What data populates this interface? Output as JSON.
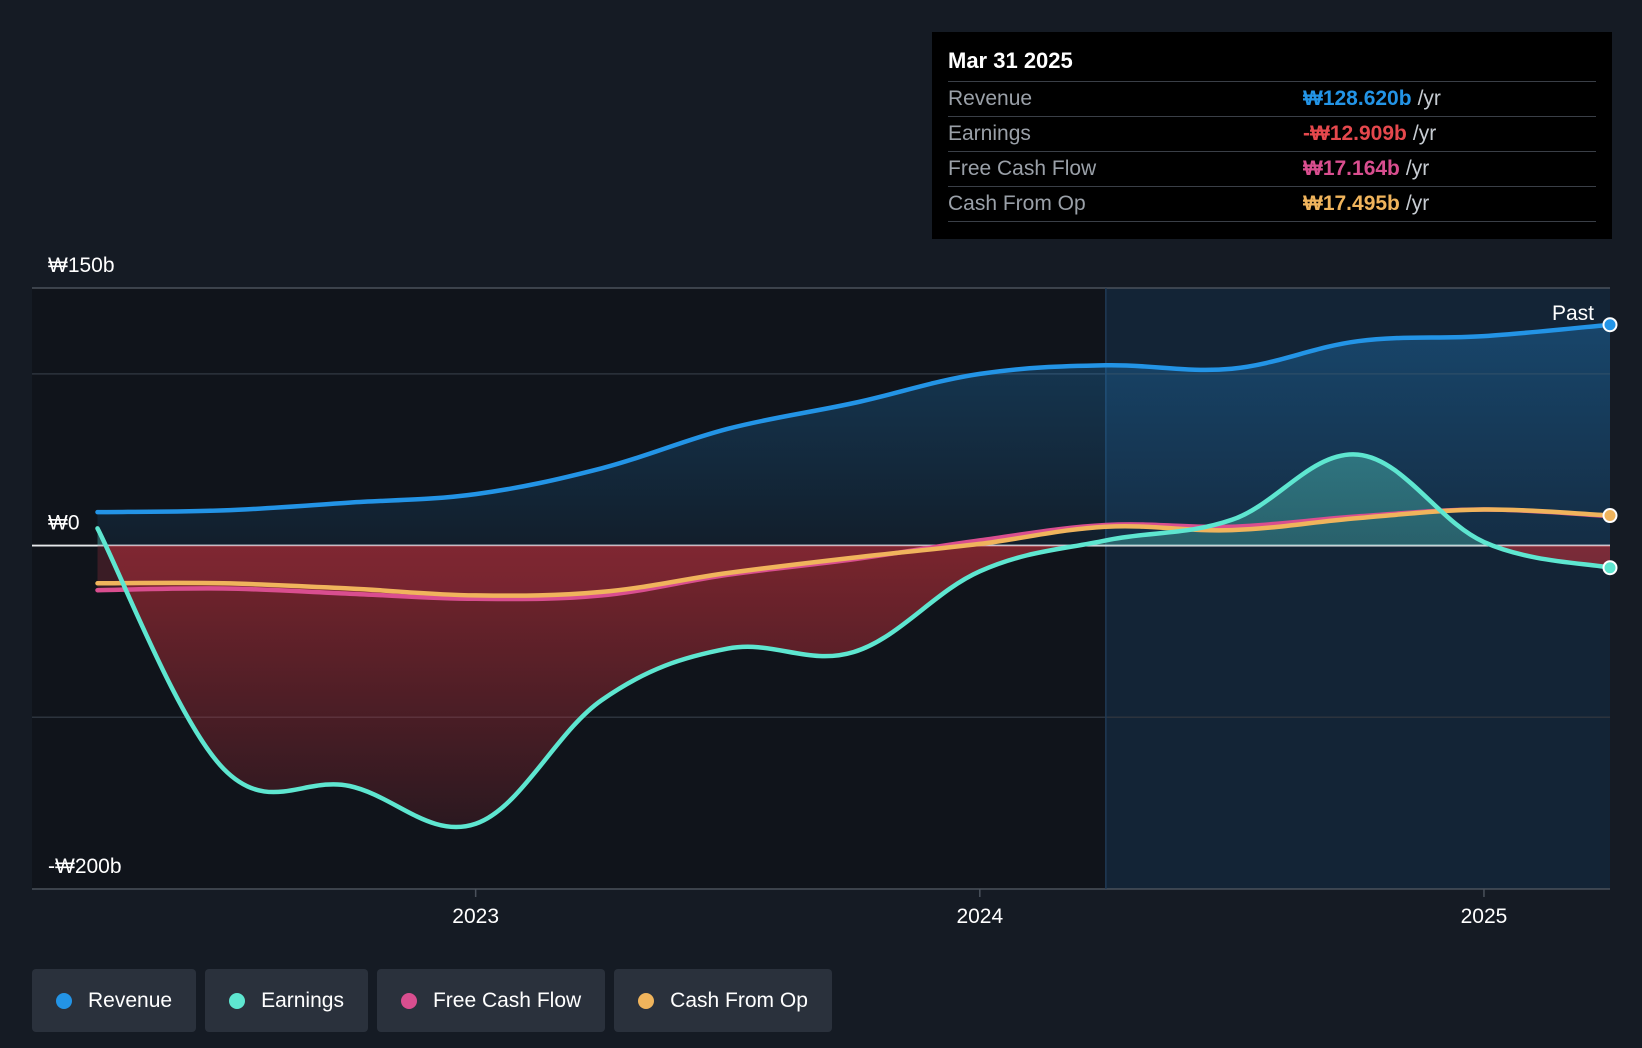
{
  "tooltip": {
    "date": "Mar 31 2025",
    "rows": [
      {
        "label": "Revenue",
        "value": "₩128.620b",
        "unit": "/yr",
        "color": "#2394e6"
      },
      {
        "label": "Earnings",
        "value": "-₩12.909b",
        "unit": "/yr",
        "color": "#e5484d"
      },
      {
        "label": "Free Cash Flow",
        "value": "₩17.164b",
        "unit": "/yr",
        "color": "#d94e8f"
      },
      {
        "label": "Cash From Op",
        "value": "₩17.495b",
        "unit": "/yr",
        "color": "#f0b45c"
      }
    ]
  },
  "legend": [
    {
      "label": "Revenue",
      "color": "#2394e6"
    },
    {
      "label": "Earnings",
      "color": "#5ee6d0"
    },
    {
      "label": "Free Cash Flow",
      "color": "#d94e8f"
    },
    {
      "label": "Cash From Op",
      "color": "#f0b45c"
    }
  ],
  "chart_data": {
    "type": "line",
    "title": "",
    "xlabel": "",
    "ylabel": "",
    "ylim": [
      -200,
      150
    ],
    "xlim": [
      2022.12,
      2025.25
    ],
    "y_tick_labels": {
      "top": "₩150b",
      "zero": "₩0",
      "bottom": "-₩200b"
    },
    "x_ticks": [
      {
        "value": 2023.0,
        "label": "2023"
      },
      {
        "value": 2024.0,
        "label": "2024"
      },
      {
        "value": 2025.0,
        "label": "2025"
      }
    ],
    "past_label": "Past",
    "past_start": 2024.25,
    "series": [
      {
        "name": "Revenue",
        "color": "#2394e6",
        "x": [
          2022.25,
          2022.5,
          2022.75,
          2023.0,
          2023.25,
          2023.5,
          2023.75,
          2024.0,
          2024.25,
          2024.5,
          2024.75,
          2025.0,
          2025.25
        ],
        "values": [
          19.5,
          20.5,
          25,
          30,
          45,
          68,
          83,
          100,
          105,
          103,
          119,
          122,
          128.62
        ]
      },
      {
        "name": "Earnings",
        "color": "#5ee6d0",
        "x": [
          2022.25,
          2022.5,
          2022.75,
          2023.0,
          2023.25,
          2023.5,
          2023.75,
          2024.0,
          2024.25,
          2024.5,
          2024.75,
          2025.0,
          2025.25
        ],
        "values": [
          10,
          -130,
          -140,
          -162,
          -90,
          -60,
          -62,
          -15,
          3,
          15,
          53,
          2,
          -12.909
        ]
      },
      {
        "name": "Free Cash Flow",
        "color": "#d94e8f",
        "x": [
          2022.25,
          2022.5,
          2022.75,
          2023.0,
          2023.25,
          2023.5,
          2023.75,
          2024.0,
          2024.25,
          2024.5,
          2024.75,
          2025.0,
          2025.25
        ],
        "values": [
          -26,
          -25,
          -28,
          -31,
          -29,
          -17,
          -8,
          3,
          12,
          11,
          17,
          21,
          17.164
        ]
      },
      {
        "name": "Cash From Op",
        "color": "#f0b45c",
        "x": [
          2022.25,
          2022.5,
          2022.75,
          2023.0,
          2023.25,
          2023.5,
          2023.75,
          2024.0,
          2024.25,
          2024.5,
          2024.75,
          2025.0,
          2025.25
        ],
        "values": [
          -22,
          -22,
          -25,
          -29,
          -27,
          -16,
          -7,
          1,
          11,
          9,
          16,
          21,
          17.495
        ]
      }
    ]
  }
}
